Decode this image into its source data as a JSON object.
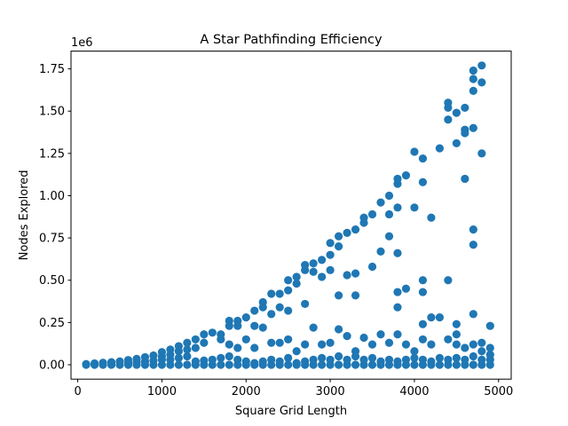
{
  "chart_data": {
    "type": "scatter",
    "title": "A Star Pathfinding Efficiency",
    "xlabel": "Square Grid Length",
    "ylabel": "Nodes Explored",
    "y_offset_label": "1e6",
    "xlim": [
      -80,
      5150
    ],
    "ylim": [
      -85000,
      1855000
    ],
    "x_ticks": [
      0,
      1000,
      2000,
      3000,
      4000,
      5000
    ],
    "x_tick_labels": [
      "0",
      "1000",
      "2000",
      "3000",
      "4000",
      "5000"
    ],
    "y_ticks": [
      0,
      250000,
      500000,
      750000,
      1000000,
      1250000,
      1500000,
      1750000
    ],
    "y_tick_labels": [
      "0.00",
      "0.25",
      "0.50",
      "0.75",
      "1.00",
      "1.25",
      "1.50",
      "1.75"
    ],
    "grid": false,
    "marker_color": "#1f77b4",
    "series": [
      {
        "points": [
          [
            100,
            0
          ],
          [
            100,
            4000
          ],
          [
            200,
            0
          ],
          [
            200,
            8000
          ],
          [
            300,
            0
          ],
          [
            300,
            12000
          ],
          [
            400,
            0
          ],
          [
            400,
            15000
          ],
          [
            500,
            0
          ],
          [
            500,
            20000
          ],
          [
            600,
            0
          ],
          [
            600,
            10000
          ],
          [
            600,
            28000
          ],
          [
            700,
            0
          ],
          [
            700,
            15000
          ],
          [
            700,
            35000
          ],
          [
            800,
            0
          ],
          [
            800,
            20000
          ],
          [
            800,
            45000
          ],
          [
            900,
            0
          ],
          [
            900,
            25000
          ],
          [
            900,
            55000
          ],
          [
            1000,
            0
          ],
          [
            1000,
            30000
          ],
          [
            1000,
            50000
          ],
          [
            1000,
            75000
          ],
          [
            1100,
            0
          ],
          [
            1100,
            30000
          ],
          [
            1100,
            60000
          ],
          [
            1100,
            90000
          ],
          [
            1200,
            0
          ],
          [
            1200,
            40000
          ],
          [
            1200,
            80000
          ],
          [
            1200,
            110000
          ],
          [
            1300,
            0
          ],
          [
            1300,
            50000
          ],
          [
            1300,
            90000
          ],
          [
            1300,
            130000
          ],
          [
            1400,
            0
          ],
          [
            1400,
            20000
          ],
          [
            1400,
            100000
          ],
          [
            1400,
            150000
          ],
          [
            1500,
            0
          ],
          [
            1500,
            25000
          ],
          [
            1500,
            130000
          ],
          [
            1500,
            180000
          ],
          [
            1600,
            0
          ],
          [
            1600,
            30000
          ],
          [
            1600,
            190000
          ],
          [
            1700,
            0
          ],
          [
            1700,
            40000
          ],
          [
            1700,
            150000
          ],
          [
            1700,
            180000
          ],
          [
            1800,
            0
          ],
          [
            1800,
            50000
          ],
          [
            1800,
            120000
          ],
          [
            1800,
            230000
          ],
          [
            1800,
            260000
          ],
          [
            1900,
            0
          ],
          [
            1900,
            30000
          ],
          [
            1900,
            100000
          ],
          [
            1900,
            230000
          ],
          [
            1900,
            260000
          ],
          [
            2000,
            0
          ],
          [
            2000,
            20000
          ],
          [
            2000,
            150000
          ],
          [
            2000,
            280000
          ],
          [
            2100,
            0
          ],
          [
            2100,
            10000
          ],
          [
            2100,
            100000
          ],
          [
            2100,
            230000
          ],
          [
            2100,
            320000
          ],
          [
            2200,
            0
          ],
          [
            2200,
            20000
          ],
          [
            2200,
            220000
          ],
          [
            2200,
            340000
          ],
          [
            2200,
            370000
          ],
          [
            2300,
            0
          ],
          [
            2300,
            30000
          ],
          [
            2300,
            130000
          ],
          [
            2300,
            300000
          ],
          [
            2300,
            420000
          ],
          [
            2400,
            0
          ],
          [
            2400,
            20000
          ],
          [
            2400,
            130000
          ],
          [
            2400,
            340000
          ],
          [
            2400,
            420000
          ],
          [
            2500,
            0
          ],
          [
            2500,
            40000
          ],
          [
            2500,
            150000
          ],
          [
            2500,
            320000
          ],
          [
            2500,
            440000
          ],
          [
            2500,
            500000
          ],
          [
            2600,
            0
          ],
          [
            2600,
            10000
          ],
          [
            2600,
            80000
          ],
          [
            2600,
            480000
          ],
          [
            2600,
            520000
          ],
          [
            2700,
            0
          ],
          [
            2700,
            20000
          ],
          [
            2700,
            120000
          ],
          [
            2700,
            360000
          ],
          [
            2700,
            560000
          ],
          [
            2700,
            590000
          ],
          [
            2800,
            0
          ],
          [
            2800,
            30000
          ],
          [
            2800,
            220000
          ],
          [
            2800,
            550000
          ],
          [
            2800,
            600000
          ],
          [
            2900,
            0
          ],
          [
            2900,
            40000
          ],
          [
            2900,
            120000
          ],
          [
            2900,
            520000
          ],
          [
            2900,
            620000
          ],
          [
            3000,
            0
          ],
          [
            3000,
            30000
          ],
          [
            3000,
            130000
          ],
          [
            3000,
            560000
          ],
          [
            3000,
            650000
          ],
          [
            3000,
            720000
          ],
          [
            3100,
            0
          ],
          [
            3100,
            50000
          ],
          [
            3100,
            210000
          ],
          [
            3100,
            410000
          ],
          [
            3100,
            700000
          ],
          [
            3100,
            760000
          ],
          [
            3200,
            0
          ],
          [
            3200,
            30000
          ],
          [
            3200,
            170000
          ],
          [
            3200,
            530000
          ],
          [
            3200,
            780000
          ],
          [
            3300,
            0
          ],
          [
            3300,
            50000
          ],
          [
            3300,
            80000
          ],
          [
            3300,
            410000
          ],
          [
            3300,
            540000
          ],
          [
            3300,
            800000
          ],
          [
            3400,
            0
          ],
          [
            3400,
            30000
          ],
          [
            3400,
            160000
          ],
          [
            3400,
            840000
          ],
          [
            3400,
            870000
          ],
          [
            3500,
            0
          ],
          [
            3500,
            40000
          ],
          [
            3500,
            120000
          ],
          [
            3500,
            580000
          ],
          [
            3500,
            890000
          ],
          [
            3600,
            0
          ],
          [
            3600,
            20000
          ],
          [
            3600,
            180000
          ],
          [
            3600,
            670000
          ],
          [
            3600,
            960000
          ],
          [
            3700,
            0
          ],
          [
            3700,
            30000
          ],
          [
            3700,
            130000
          ],
          [
            3700,
            760000
          ],
          [
            3700,
            890000
          ],
          [
            3700,
            1000000
          ],
          [
            3800,
            0
          ],
          [
            3800,
            20000
          ],
          [
            3800,
            180000
          ],
          [
            3800,
            340000
          ],
          [
            3800,
            430000
          ],
          [
            3800,
            660000
          ],
          [
            3800,
            930000
          ],
          [
            3800,
            1070000
          ],
          [
            3800,
            1100000
          ],
          [
            3900,
            0
          ],
          [
            3900,
            30000
          ],
          [
            3900,
            120000
          ],
          [
            3900,
            450000
          ],
          [
            3900,
            1120000
          ],
          [
            4000,
            0
          ],
          [
            4000,
            40000
          ],
          [
            4000,
            80000
          ],
          [
            4000,
            930000
          ],
          [
            4000,
            1260000
          ],
          [
            4100,
            0
          ],
          [
            4100,
            30000
          ],
          [
            4100,
            150000
          ],
          [
            4100,
            240000
          ],
          [
            4100,
            430000
          ],
          [
            4100,
            500000
          ],
          [
            4100,
            1080000
          ],
          [
            4100,
            1220000
          ],
          [
            4200,
            0
          ],
          [
            4200,
            20000
          ],
          [
            4200,
            120000
          ],
          [
            4200,
            280000
          ],
          [
            4200,
            870000
          ],
          [
            4300,
            0
          ],
          [
            4300,
            40000
          ],
          [
            4300,
            280000
          ],
          [
            4300,
            1280000
          ],
          [
            4400,
            0
          ],
          [
            4400,
            30000
          ],
          [
            4400,
            150000
          ],
          [
            4400,
            500000
          ],
          [
            4400,
            1450000
          ],
          [
            4400,
            1520000
          ],
          [
            4400,
            1550000
          ],
          [
            4500,
            0
          ],
          [
            4500,
            40000
          ],
          [
            4500,
            120000
          ],
          [
            4500,
            180000
          ],
          [
            4500,
            240000
          ],
          [
            4500,
            1310000
          ],
          [
            4500,
            1490000
          ],
          [
            4600,
            0
          ],
          [
            4600,
            30000
          ],
          [
            4600,
            100000
          ],
          [
            4600,
            1100000
          ],
          [
            4600,
            1370000
          ],
          [
            4600,
            1390000
          ],
          [
            4600,
            1520000
          ],
          [
            4700,
            0
          ],
          [
            4700,
            50000
          ],
          [
            4700,
            120000
          ],
          [
            4700,
            300000
          ],
          [
            4700,
            710000
          ],
          [
            4700,
            800000
          ],
          [
            4700,
            1400000
          ],
          [
            4700,
            1620000
          ],
          [
            4700,
            1690000
          ],
          [
            4700,
            1740000
          ],
          [
            4800,
            0
          ],
          [
            4800,
            30000
          ],
          [
            4800,
            80000
          ],
          [
            4800,
            130000
          ],
          [
            4800,
            1250000
          ],
          [
            4800,
            1670000
          ],
          [
            4800,
            1770000
          ],
          [
            4900,
            0
          ],
          [
            4900,
            30000
          ],
          [
            4900,
            60000
          ],
          [
            4900,
            100000
          ],
          [
            4900,
            230000
          ]
        ]
      }
    ]
  }
}
